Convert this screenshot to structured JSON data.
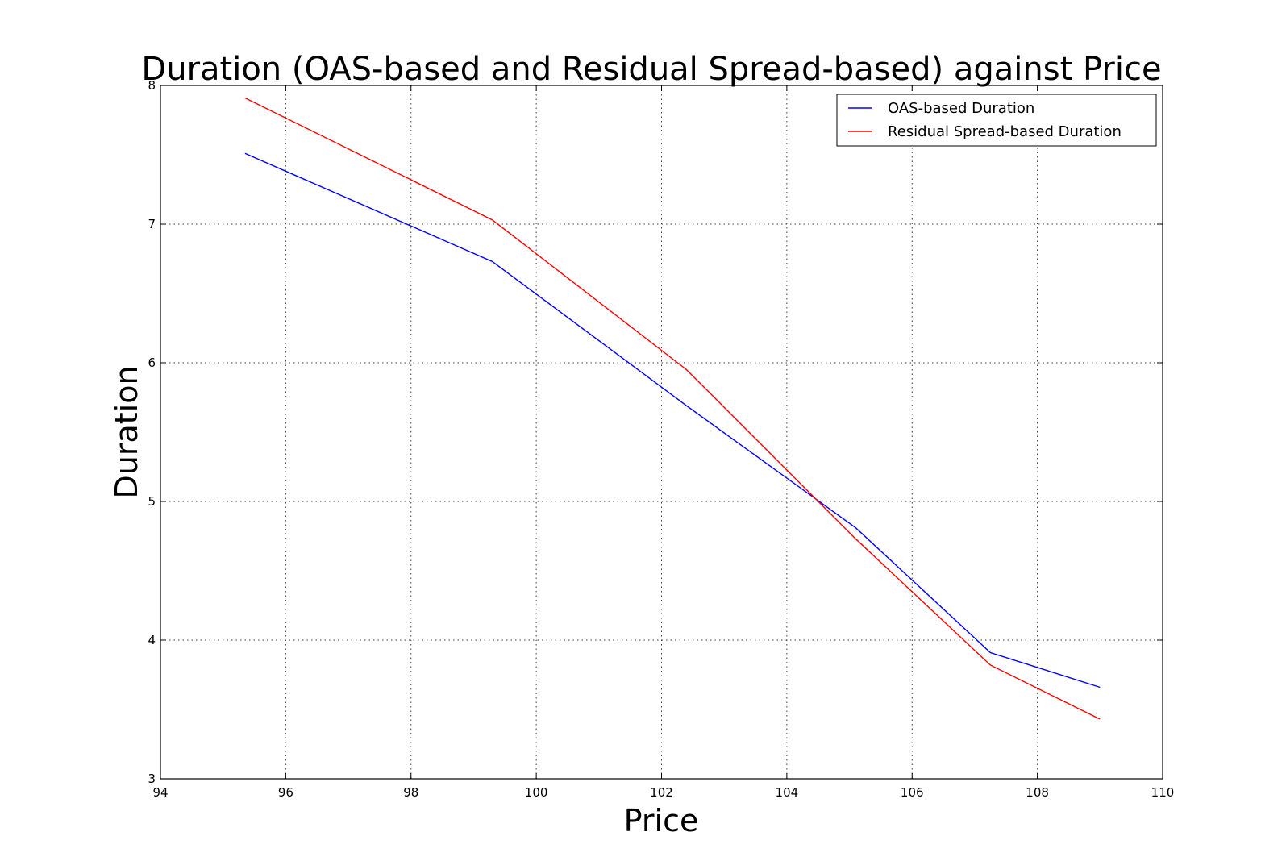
{
  "chart_data": {
    "type": "line",
    "title": "Duration (OAS-based and Residual Spread-based) against Price",
    "xlabel": "Price",
    "ylabel": "Duration",
    "xlim": [
      94,
      110
    ],
    "ylim": [
      3,
      8
    ],
    "xticks": [
      94,
      96,
      98,
      100,
      102,
      104,
      106,
      108,
      110
    ],
    "yticks": [
      3,
      4,
      5,
      6,
      7,
      8
    ],
    "grid": true,
    "legend": "top-right",
    "series": [
      {
        "name": "OAS-based Duration",
        "color": "#0000ff",
        "x": [
          95.35,
          99.3,
          102.4,
          105.1,
          107.25,
          109.0
        ],
        "y": [
          7.51,
          6.73,
          5.69,
          4.81,
          3.91,
          3.66
        ]
      },
      {
        "name": "Residual Spread-based Duration",
        "color": "#ff0000",
        "x": [
          95.35,
          99.3,
          102.4,
          105.1,
          107.25,
          109.0
        ],
        "y": [
          7.91,
          7.03,
          5.95,
          4.73,
          3.82,
          3.43
        ]
      }
    ]
  }
}
